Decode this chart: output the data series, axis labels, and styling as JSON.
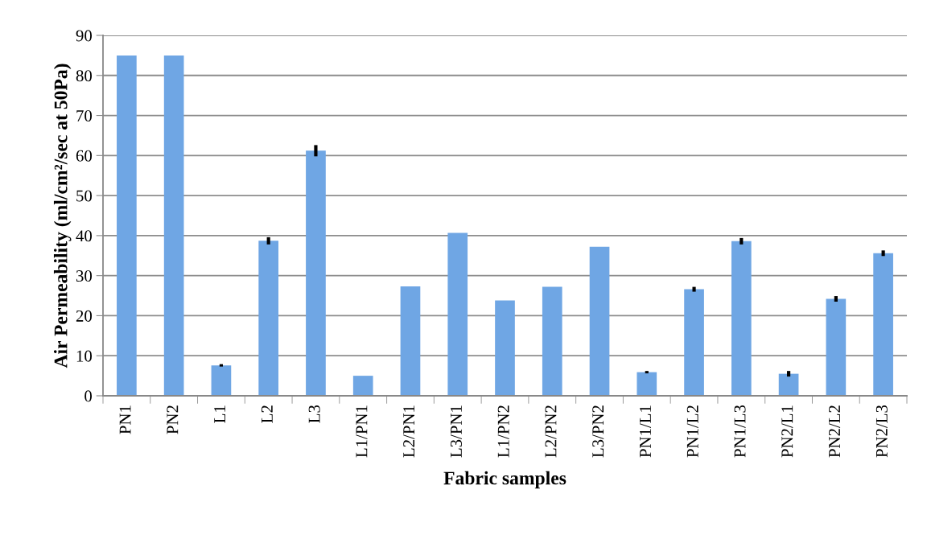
{
  "chart_data": {
    "type": "bar",
    "xlabel": "Fabric samples",
    "ylabel": "Air Permeability (ml/cm²/sec at 50Pa)",
    "categories": [
      "PN1",
      "PN2",
      "L1",
      "L2",
      "L3",
      "L1/PN1",
      "L2/PN1",
      "L3/PN1",
      "L1/PN2",
      "L2/PN2",
      "L3/PN2",
      "PN1/L1",
      "PN1/L2",
      "PN1/L3",
      "PN2/L1",
      "PN2/L2",
      "PN2/L3"
    ],
    "values": [
      85.0,
      85.0,
      7.6,
      38.7,
      61.2,
      5.0,
      27.3,
      40.7,
      23.8,
      27.2,
      37.2,
      5.9,
      26.6,
      38.6,
      5.5,
      24.2,
      35.6
    ],
    "errors": [
      null,
      null,
      0.3,
      0.9,
      1.4,
      null,
      null,
      null,
      null,
      null,
      null,
      0.3,
      0.6,
      0.8,
      0.7,
      0.7,
      0.7
    ],
    "color": "#6fa6e4",
    "ylim": [
      0,
      90
    ],
    "yticks": [
      0,
      10,
      20,
      30,
      40,
      50,
      60,
      70,
      80,
      90
    ],
    "grid": "y"
  }
}
